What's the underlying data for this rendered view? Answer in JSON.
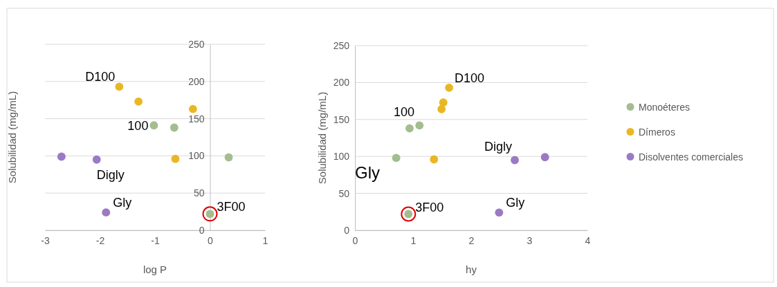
{
  "chart_data": [
    {
      "type": "scatter",
      "xlabel": "log P",
      "ylabel": "Solubilidad (mg/mL)",
      "xlim": [
        -3,
        1
      ],
      "xticks": [
        -3,
        -2,
        -1,
        0,
        1
      ],
      "ylim": [
        0,
        250
      ],
      "yticks": [
        0,
        50,
        100,
        150,
        200,
        250
      ],
      "grid": "y",
      "legend": false,
      "marker": "circle",
      "series": [
        {
          "color": "#a3bd8f",
          "x": [
            -1.02,
            -0.65,
            0.34,
            0
          ],
          "values": [
            141,
            138,
            98,
            22
          ]
        },
        {
          "color": "#e8b723",
          "x": [
            -1.65,
            -1.3,
            -0.31,
            -0.63
          ],
          "values": [
            193,
            173,
            163,
            96
          ]
        },
        {
          "color": "#9a7ac4",
          "x": [
            -2.7,
            -2.06,
            -1.89
          ],
          "values": [
            99,
            95,
            24
          ]
        }
      ],
      "annotations": [
        {
          "text": "D100",
          "x": -1.65,
          "y": 193
        },
        {
          "text": "100",
          "x": -1.02,
          "y": 141
        },
        {
          "text": "Digly",
          "x": -2.06,
          "y": 95
        },
        {
          "text": "Gly",
          "x": -1.89,
          "y": 24
        },
        {
          "text": "3F00",
          "x": 0,
          "y": 22
        }
      ]
    },
    {
      "type": "scatter",
      "xlabel": "hy",
      "ylabel": "Solubilidad (mg/mL)",
      "xlim": [
        0,
        4
      ],
      "xticks": [
        0,
        1,
        2,
        3,
        4
      ],
      "ylim": [
        0,
        250
      ],
      "yticks": [
        0,
        50,
        100,
        150,
        200,
        250
      ],
      "grid": "y",
      "legend": "right",
      "marker": "circle",
      "series": [
        {
          "name": "Monoéteres",
          "color": "#a3bd8f",
          "x": [
            0.71,
            0.94,
            1.11,
            0.92
          ],
          "values": [
            98,
            138,
            142,
            22
          ]
        },
        {
          "name": "Dímeros",
          "color": "#e8b723",
          "x": [
            1.62,
            1.52,
            1.49,
            1.36
          ],
          "values": [
            193,
            173,
            164,
            96
          ]
        },
        {
          "name": "Disolventes comerciales",
          "color": "#9a7ac4",
          "x": [
            2.75,
            3.27,
            2.48
          ],
          "values": [
            95,
            99,
            24
          ]
        }
      ],
      "annotations": [
        "Gly",
        {
          "text": "D100",
          "x": 1.62,
          "y": 193
        },
        {
          "text": "100",
          "x": 0.94,
          "y": 138
        },
        {
          "text": "Digly",
          "x": 2.75,
          "y": 95
        },
        {
          "text": "Gly",
          "x": 2.48,
          "y": 24
        },
        {
          "text": "3F00",
          "x": 0.92,
          "y": 22
        }
      ]
    }
  ]
}
